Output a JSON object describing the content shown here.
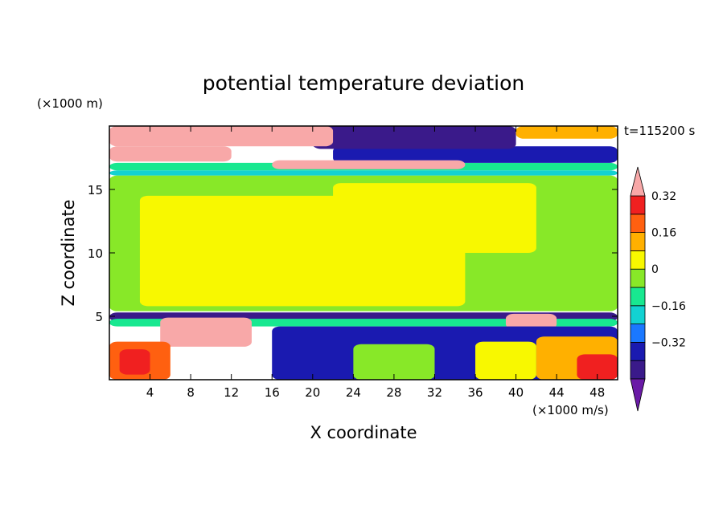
{
  "chart_data": {
    "type": "heatmap",
    "title": "potential temperature deviation",
    "xlabel": "X coordinate",
    "ylabel": "Z coordinate",
    "x_unit": "(×1000 m/s)",
    "y_unit": "(×1000 m)",
    "time_label": "t=115200 s",
    "xlim": [
      0,
      50
    ],
    "ylim": [
      0,
      20
    ],
    "x_ticks": [
      4,
      8,
      12,
      16,
      20,
      24,
      28,
      32,
      36,
      40,
      44,
      48
    ],
    "y_ticks": [
      5,
      10,
      15
    ],
    "colorbar": {
      "levels": [
        -0.48,
        -0.4,
        -0.32,
        -0.24,
        -0.16,
        -0.08,
        0,
        0.08,
        0.16,
        0.24,
        0.32,
        0.4
      ],
      "labels": [
        0.32,
        0.16,
        0,
        -0.16,
        -0.32
      ],
      "label_text": [
        "0.32",
        "0.16",
        "0",
        "−0.16",
        "−0.32"
      ],
      "colors": [
        "#6a1aa6",
        "#3a1a8a",
        "#1a1ab0",
        "#1a78ff",
        "#12d2d2",
        "#18e890",
        "#88e828",
        "#f8f800",
        "#ffb000",
        "#ff6010",
        "#f02020",
        "#f8a8a8"
      ],
      "extend": "both"
    },
    "regions": [
      {
        "level": 0,
        "x": [
          0,
          50
        ],
        "z": [
          5.4,
          16.1
        ]
      },
      {
        "level": 1,
        "x": [
          3,
          35
        ],
        "z": [
          5.8,
          14.5
        ]
      },
      {
        "level": 1,
        "x": [
          22,
          42
        ],
        "z": [
          10,
          15.5
        ]
      },
      {
        "level": -2,
        "x": [
          0,
          50
        ],
        "z": [
          16.1,
          16.5
        ]
      },
      {
        "level": -1,
        "x": [
          0,
          50
        ],
        "z": [
          16.5,
          17.1
        ]
      },
      {
        "level": -4,
        "x": [
          22,
          50
        ],
        "z": [
          17.1,
          18.4
        ]
      },
      {
        "level": -5,
        "x": [
          20,
          40
        ],
        "z": [
          18.2,
          20
        ]
      },
      {
        "level": 5,
        "x": [
          0,
          12
        ],
        "z": [
          17.2,
          18.4
        ]
      },
      {
        "level": 5,
        "x": [
          16,
          35
        ],
        "z": [
          16.6,
          17.3
        ]
      },
      {
        "level": 5,
        "x": [
          0,
          22
        ],
        "z": [
          18.4,
          20
        ]
      },
      {
        "level": 2,
        "x": [
          40,
          50
        ],
        "z": [
          19,
          20
        ]
      },
      {
        "level": -5,
        "x": [
          0,
          50
        ],
        "z": [
          4.6,
          5.3
        ]
      },
      {
        "level": -1,
        "x": [
          0,
          50
        ],
        "z": [
          4.2,
          4.8
        ]
      },
      {
        "level": 5,
        "x": [
          5,
          14
        ],
        "z": [
          2.6,
          4.9
        ]
      },
      {
        "level": 5,
        "x": [
          39,
          44
        ],
        "z": [
          4.0,
          5.2
        ]
      },
      {
        "level": -4,
        "x": [
          16,
          50
        ],
        "z": [
          0,
          4.2
        ]
      },
      {
        "level": 3,
        "x": [
          0,
          6
        ],
        "z": [
          0,
          3.0
        ]
      },
      {
        "level": 4,
        "x": [
          1,
          4
        ],
        "z": [
          0.4,
          2.4
        ]
      },
      {
        "level": 2,
        "x": [
          42,
          50
        ],
        "z": [
          0,
          3.4
        ]
      },
      {
        "level": 1,
        "x": [
          36,
          42
        ],
        "z": [
          0,
          3.0
        ]
      },
      {
        "level": 0,
        "x": [
          24,
          32
        ],
        "z": [
          0,
          2.8
        ]
      },
      {
        "level": 4,
        "x": [
          46,
          50
        ],
        "z": [
          0,
          2.0
        ]
      }
    ]
  }
}
